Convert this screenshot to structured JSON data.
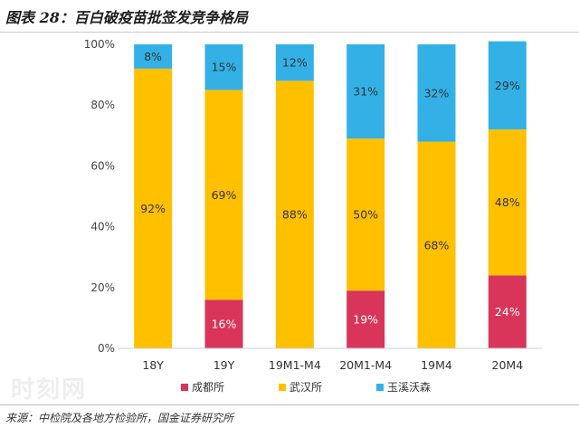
{
  "header": {
    "title": "图表 28：百白破疫苗批签发竞争格局"
  },
  "footer": {
    "source": "来源：中检院及各地方检验所，国金证券研究所"
  },
  "watermark": "时刻网",
  "chart_data": {
    "type": "bar",
    "stacked": true,
    "categories": [
      "18Y",
      "19Y",
      "19M1-M4",
      "20M1-M4",
      "19M4",
      "20M4"
    ],
    "series": [
      {
        "name": "成都所",
        "color": "#d9355a",
        "values": [
          0,
          16,
          0,
          19,
          0,
          24
        ],
        "labels": [
          "",
          "16%",
          "",
          "19%",
          "",
          "24%"
        ]
      },
      {
        "name": "武汉所",
        "color": "#ffc000",
        "values": [
          92,
          69,
          88,
          50,
          68,
          48
        ],
        "labels": [
          "92%",
          "69%",
          "88%",
          "50%",
          "68%",
          "48%"
        ]
      },
      {
        "name": "玉溪沃森",
        "color": "#33b1e6",
        "values": [
          8,
          15,
          12,
          31,
          32,
          29
        ],
        "labels": [
          "8%",
          "15%",
          "12%",
          "31%",
          "32%",
          "29%"
        ]
      }
    ],
    "ylim": [
      0,
      100
    ],
    "yticks": [
      "0%",
      "20%",
      "40%",
      "60%",
      "80%",
      "100%"
    ],
    "ytick_values": [
      0,
      20,
      40,
      60,
      80,
      100
    ],
    "xlabel": "",
    "ylabel": "",
    "grid": false,
    "legend_position": "bottom"
  }
}
